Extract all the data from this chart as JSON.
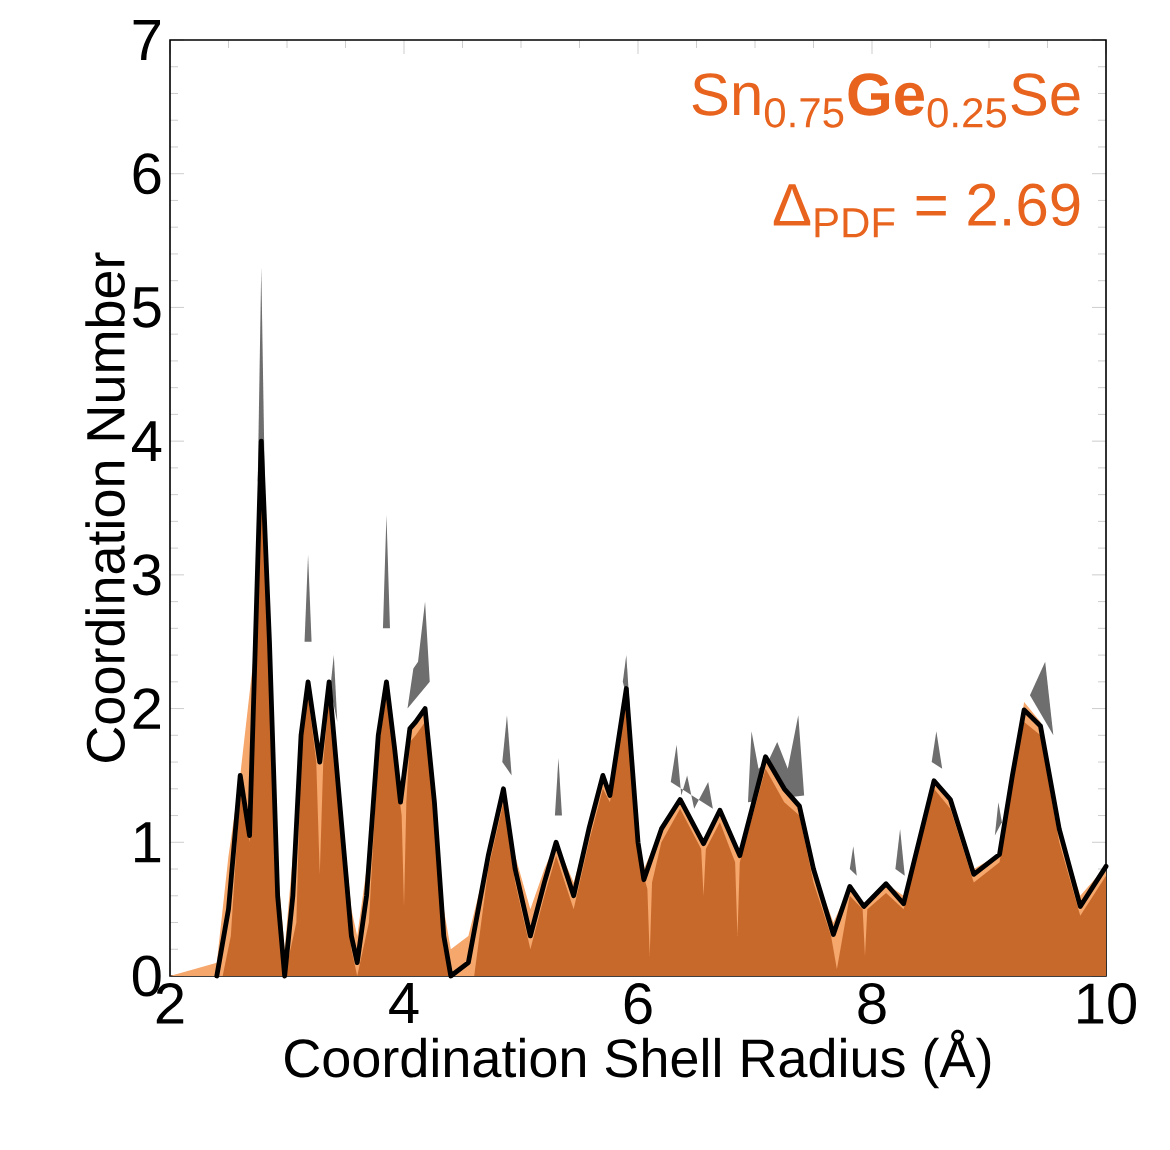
{
  "chart_data": {
    "type": "area",
    "xlabel": "Coordination Shell Radius (Å)",
    "ylabel": "Coordination Number",
    "annotations": [
      "Sn$_{0.75}$**Ge**$_{0.25}$Se",
      "Δ$_{PDF}$ = 2.69"
    ],
    "xlim": [
      2,
      10
    ],
    "ylim": [
      0,
      7
    ],
    "xticks": [
      2,
      4,
      6,
      8,
      10
    ],
    "yticks": [
      0,
      1,
      2,
      3,
      4,
      5,
      6,
      7
    ],
    "series": [
      {
        "color": "#6e6e6e",
        "x": [
          2.75,
          2.78,
          2.81,
          2.9,
          3.15,
          3.18,
          3.21,
          3.3,
          3.37,
          3.4,
          3.43,
          3.6,
          3.82,
          3.85,
          3.88,
          3.95,
          4.03,
          4.08,
          4.12,
          4.18,
          4.22,
          4.5,
          4.84,
          4.88,
          4.92,
          5.1,
          5.29,
          5.32,
          5.35,
          5.6,
          5.87,
          5.9,
          5.93,
          6.1,
          6.28,
          6.33,
          6.37,
          6.42,
          6.48,
          6.6,
          6.64,
          6.8,
          6.94,
          6.97,
          7.03,
          7.12,
          7.19,
          7.28,
          7.37,
          7.42,
          7.6,
          7.81,
          7.84,
          7.87,
          8.0,
          8.2,
          8.24,
          8.28,
          8.4,
          8.51,
          8.55,
          8.6,
          8.9,
          9.05,
          9.08,
          9.11,
          9.2,
          9.35,
          9.48,
          9.55
        ],
        "values": [
          3.7,
          5.3,
          3.7,
          null,
          2.5,
          3.15,
          2.5,
          null,
          2.15,
          2.4,
          1.9,
          null,
          2.6,
          3.45,
          2.6,
          null,
          2.0,
          2.3,
          2.35,
          2.8,
          2.2,
          null,
          1.6,
          1.95,
          1.5,
          null,
          1.2,
          1.63,
          1.2,
          null,
          2.2,
          2.4,
          2.0,
          null,
          1.45,
          1.73,
          1.35,
          1.5,
          1.25,
          1.45,
          1.25,
          null,
          1.3,
          1.83,
          1.55,
          1.62,
          1.75,
          1.55,
          1.95,
          1.35,
          null,
          0.8,
          0.97,
          0.75,
          null,
          0.8,
          1.1,
          0.75,
          null,
          1.6,
          1.83,
          1.55,
          null,
          1.05,
          1.3,
          1.15,
          null,
          2.1,
          2.35,
          1.8
        ]
      },
      {
        "color": "#f5a76c",
        "x": [
          2.0,
          2.4,
          2.5,
          2.6,
          2.73,
          2.78,
          2.85,
          2.92,
          2.98,
          3.05,
          3.12,
          3.18,
          3.28,
          3.36,
          3.45,
          3.55,
          3.6,
          3.68,
          3.78,
          3.85,
          3.92,
          3.97,
          4.05,
          4.1,
          4.18,
          4.26,
          4.34,
          4.4,
          4.55,
          4.72,
          4.85,
          4.95,
          5.08,
          5.2,
          5.3,
          5.45,
          5.58,
          5.7,
          5.76,
          5.9,
          6.0,
          6.05,
          6.2,
          6.36,
          6.56,
          6.7,
          6.87,
          7.09,
          7.25,
          7.38,
          7.5,
          7.67,
          7.81,
          7.93,
          8.12,
          8.27,
          8.4,
          8.53,
          8.67,
          8.87,
          9.09,
          9.2,
          9.3,
          9.44,
          9.6,
          9.78,
          10.0
        ],
        "values": [
          0,
          0.1,
          0.9,
          1.5,
          2.5,
          4.0,
          2.6,
          0.8,
          0.2,
          0.9,
          1.8,
          2.2,
          1.6,
          2.2,
          1.4,
          0.5,
          0.3,
          0.8,
          1.8,
          2.2,
          1.7,
          1.3,
          1.85,
          1.9,
          2.0,
          1.4,
          0.5,
          0.2,
          0.3,
          0.9,
          1.4,
          0.9,
          0.5,
          0.8,
          1.0,
          0.7,
          1.1,
          1.5,
          1.35,
          2.15,
          1.0,
          0.8,
          1.1,
          1.32,
          0.99,
          1.24,
          0.9,
          1.64,
          1.4,
          1.27,
          0.8,
          0.4,
          0.67,
          0.52,
          0.69,
          0.6,
          1.0,
          1.46,
          1.32,
          0.8,
          0.91,
          1.5,
          2.05,
          1.9,
          1.1,
          0.6,
          0.82
        ]
      },
      {
        "color": "#c8692c",
        "x": [
          2.0,
          2.45,
          2.52,
          2.6,
          2.68,
          2.73,
          2.78,
          2.85,
          2.92,
          2.98,
          3.08,
          3.12,
          3.18,
          3.25,
          3.28,
          3.31,
          3.36,
          3.45,
          3.55,
          3.6,
          3.7,
          3.78,
          3.85,
          3.92,
          3.98,
          4.0,
          4.02,
          4.05,
          4.1,
          4.18,
          4.26,
          4.34,
          4.4,
          4.6,
          4.72,
          4.85,
          4.95,
          5.08,
          5.2,
          5.3,
          5.45,
          5.58,
          5.7,
          5.76,
          5.9,
          6.0,
          6.08,
          6.1,
          6.12,
          6.2,
          6.36,
          6.54,
          6.56,
          6.58,
          6.7,
          6.83,
          6.85,
          6.87,
          7.09,
          7.25,
          7.38,
          7.5,
          7.65,
          7.7,
          7.75,
          7.81,
          7.92,
          7.94,
          7.96,
          8.12,
          8.27,
          8.4,
          8.53,
          8.67,
          8.87,
          9.09,
          9.2,
          9.3,
          9.44,
          9.6,
          9.78,
          10.0
        ],
        "values": [
          0,
          0,
          0.3,
          1.4,
          1.0,
          2.4,
          3.9,
          2.4,
          0.5,
          0,
          0.4,
          1.7,
          2.1,
          1.6,
          0.76,
          1.6,
          2.1,
          1.2,
          0.2,
          0,
          0.4,
          1.7,
          2.1,
          1.6,
          1.2,
          0.52,
          1.3,
          1.75,
          1.8,
          1.9,
          1.2,
          0.2,
          0,
          0,
          0.8,
          1.3,
          0.7,
          0.2,
          0.6,
          0.9,
          0.5,
          1.0,
          1.4,
          1.3,
          2.05,
          0.9,
          0.65,
          0.15,
          0.7,
          1.0,
          1.25,
          0.95,
          0.6,
          0.95,
          1.15,
          0.85,
          0.3,
          0.85,
          1.55,
          1.3,
          1.2,
          0.7,
          0.3,
          0.05,
          0.3,
          0.6,
          0.5,
          0.15,
          0.5,
          0.62,
          0.5,
          0.95,
          1.4,
          1.25,
          0.7,
          0.85,
          1.45,
          1.9,
          1.8,
          1.0,
          0.45,
          0.75
        ]
      },
      {
        "type": "line",
        "color": "#000000",
        "x": [
          2.4,
          2.5,
          2.6,
          2.68,
          2.73,
          2.78,
          2.85,
          2.92,
          2.98,
          3.05,
          3.12,
          3.18,
          3.28,
          3.36,
          3.45,
          3.55,
          3.6,
          3.68,
          3.78,
          3.85,
          3.92,
          3.97,
          4.05,
          4.1,
          4.18,
          4.26,
          4.34,
          4.4,
          4.55,
          4.72,
          4.85,
          4.95,
          5.08,
          5.2,
          5.3,
          5.45,
          5.58,
          5.7,
          5.76,
          5.9,
          6.0,
          6.05,
          6.2,
          6.36,
          6.56,
          6.7,
          6.87,
          7.09,
          7.25,
          7.38,
          7.5,
          7.67,
          7.81,
          7.93,
          8.12,
          8.27,
          8.4,
          8.53,
          8.67,
          8.87,
          9.09,
          9.2,
          9.3,
          9.44,
          9.6,
          9.78,
          10.0
        ],
        "values": [
          0,
          0.5,
          1.5,
          1.05,
          2.5,
          4.0,
          2.5,
          0.6,
          0,
          0.6,
          1.8,
          2.2,
          1.6,
          2.2,
          1.3,
          0.3,
          0.1,
          0.6,
          1.8,
          2.2,
          1.7,
          1.3,
          1.85,
          1.9,
          2.0,
          1.3,
          0.3,
          0,
          0.1,
          0.9,
          1.4,
          0.8,
          0.3,
          0.7,
          1.0,
          0.6,
          1.1,
          1.5,
          1.35,
          2.15,
          1.0,
          0.72,
          1.1,
          1.32,
          0.99,
          1.24,
          0.9,
          1.64,
          1.4,
          1.27,
          0.8,
          0.31,
          0.67,
          0.52,
          0.69,
          0.54,
          1.0,
          1.46,
          1.32,
          0.76,
          0.91,
          1.5,
          1.99,
          1.87,
          1.1,
          0.52,
          0.82
        ]
      }
    ]
  }
}
